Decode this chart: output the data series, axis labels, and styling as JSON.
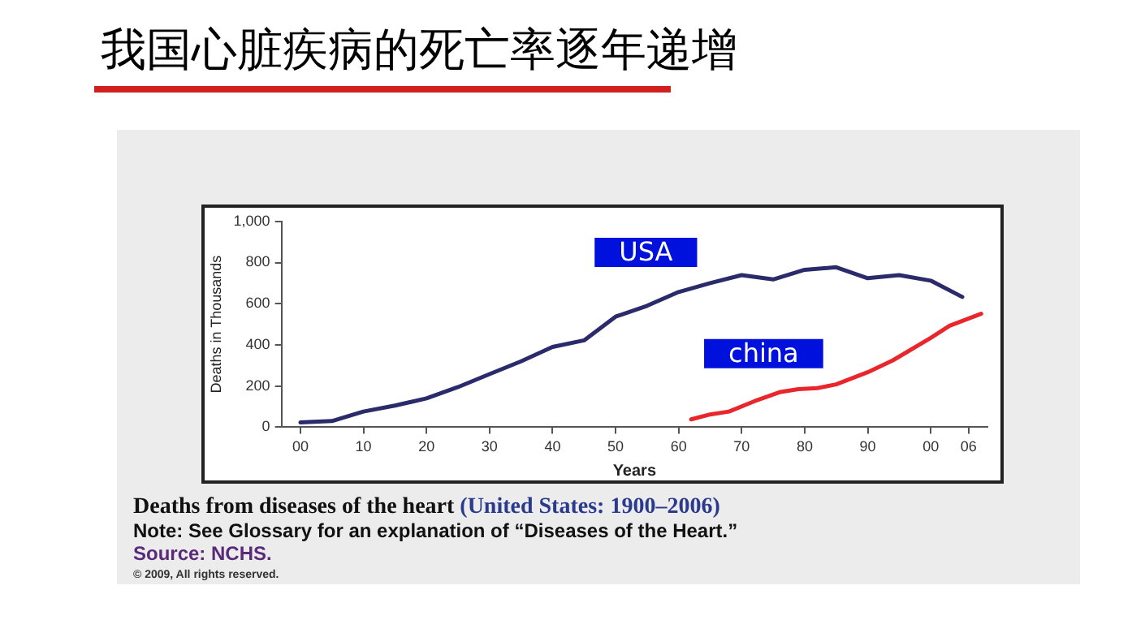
{
  "chart_data": {
    "type": "line",
    "title": "我国心脏疾病的死亡率逐年递增",
    "xlabel": "Years",
    "ylabel": "Deaths in Thousands",
    "series": [
      {
        "name": "USA",
        "color": "#2b2a6b",
        "x": [
          1900,
          1905,
          1910,
          1915,
          1920,
          1925,
          1930,
          1935,
          1940,
          1945,
          1950,
          1955,
          1960,
          1965,
          1970,
          1975,
          1980,
          1985,
          1990,
          1995,
          2000,
          2005
        ],
        "values": [
          23,
          30,
          76,
          105,
          140,
          195,
          258,
          320,
          390,
          422,
          537,
          590,
          657,
          700,
          739,
          718,
          765,
          777,
          724,
          739,
          712,
          633
        ]
      },
      {
        "name": "china",
        "color": "#e8262b",
        "x": [
          1962,
          1965,
          1968,
          1972,
          1976,
          1979,
          1982,
          1985,
          1990,
          1994,
          2000,
          2003,
          2008
        ],
        "values": [
          38,
          62,
          76,
          126,
          170,
          185,
          190,
          208,
          267,
          325,
          434,
          493,
          551
        ]
      }
    ],
    "xlim": [
      1897,
      2009
    ],
    "xticks": [
      {
        "value": 1900,
        "label": "00"
      },
      {
        "value": 1910,
        "label": "10"
      },
      {
        "value": 1920,
        "label": "20"
      },
      {
        "value": 1930,
        "label": "30"
      },
      {
        "value": 1940,
        "label": "40"
      },
      {
        "value": 1950,
        "label": "50"
      },
      {
        "value": 1960,
        "label": "60"
      },
      {
        "value": 1970,
        "label": "70"
      },
      {
        "value": 1980,
        "label": "80"
      },
      {
        "value": 1990,
        "label": "90"
      },
      {
        "value": 2000,
        "label": "00"
      },
      {
        "value": 2006,
        "label": "06"
      }
    ],
    "ylim": [
      0,
      1000
    ],
    "yticks": [
      0,
      200,
      400,
      600,
      800,
      {
        "value": 1000,
        "label": "1,000"
      }
    ],
    "grid": false,
    "legend": false,
    "marker": "none",
    "line_style": "solid",
    "annotations": [
      "Deaths from diseases of the heart (United States: 1900–2006)",
      "Note: See Glossary for an explanation of “Diseases of the Heart.”",
      "Source: NCHS.",
      "© 2009, All rights reserved."
    ]
  }
}
